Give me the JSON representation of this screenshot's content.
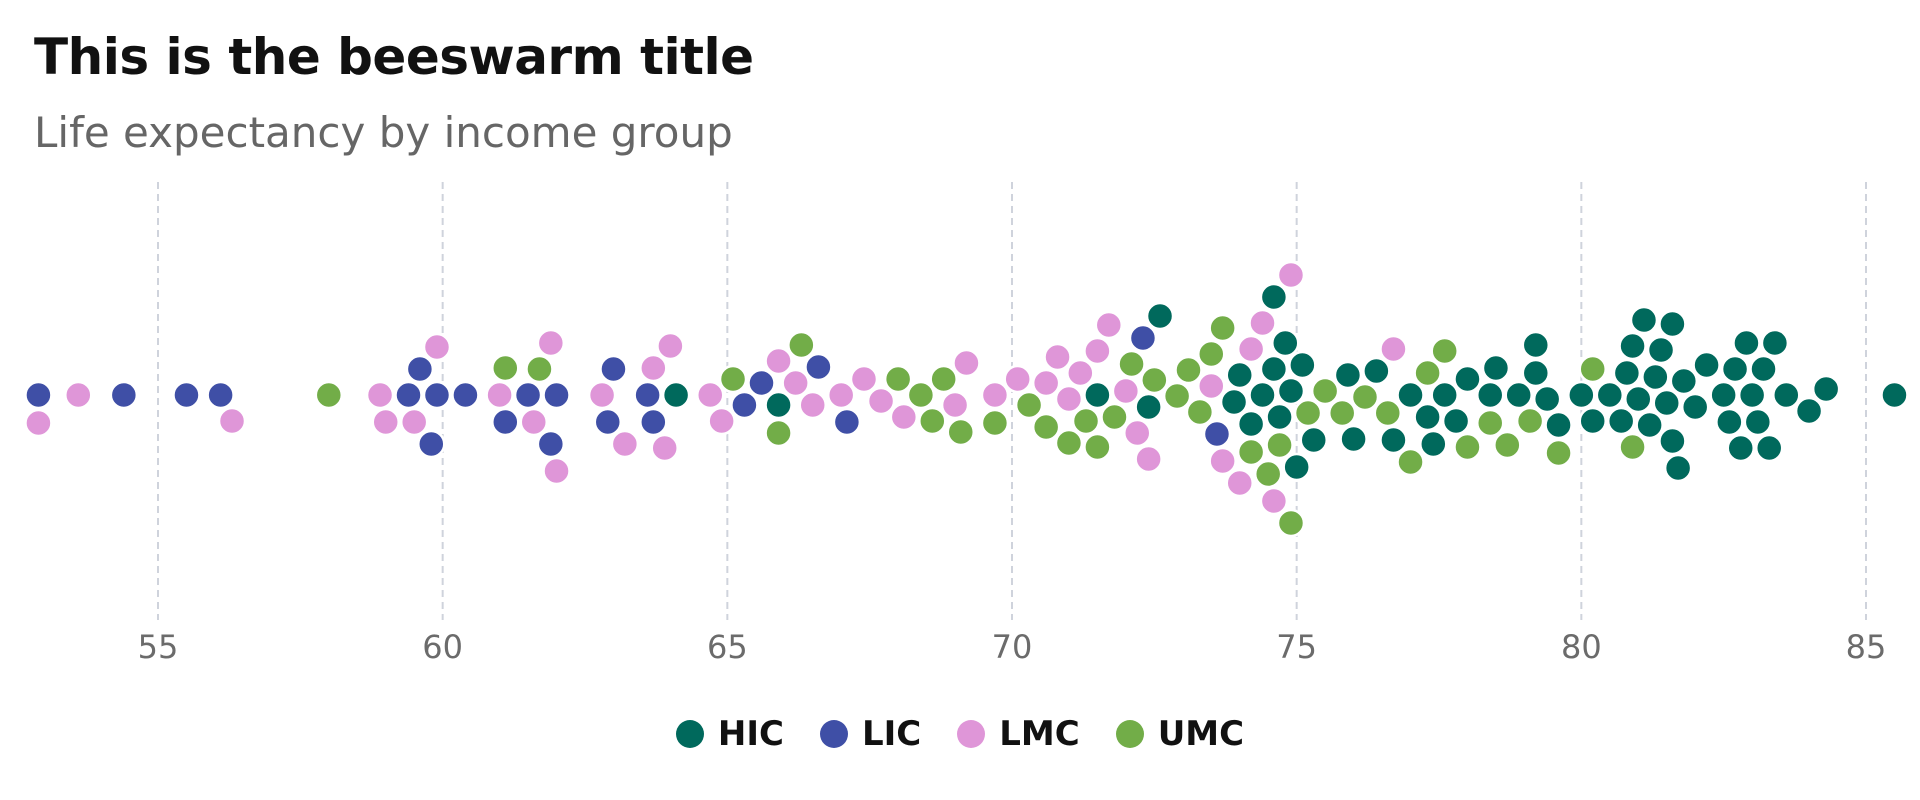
{
  "title": "This is the beeswarm title",
  "subtitle": "Life expectancy by income group",
  "chart_data": {
    "type": "scatter",
    "subtype": "beeswarm",
    "xlabel": "",
    "ylabel": "",
    "xlim": [
      52.8,
      85.5
    ],
    "x_ticks": [
      55,
      60,
      65,
      70,
      75,
      80,
      85
    ],
    "grid": "vertical dashed",
    "legend_position": "bottom-center",
    "series": [
      {
        "name": "HIC",
        "color": "#00695c",
        "values": [
          64.1,
          65.9,
          71.5,
          72.4,
          72.6,
          73.9,
          74.0,
          74.2,
          74.4,
          74.6,
          74.6,
          74.7,
          74.8,
          74.9,
          75.0,
          75.1,
          75.3,
          75.9,
          76.0,
          76.4,
          76.7,
          77.0,
          77.3,
          77.4,
          77.6,
          77.8,
          78.0,
          78.4,
          78.5,
          78.9,
          79.2,
          79.2,
          79.4,
          79.6,
          80.0,
          80.2,
          80.5,
          80.7,
          80.8,
          80.9,
          81.0,
          81.1,
          81.2,
          81.3,
          81.4,
          81.5,
          81.6,
          81.6,
          81.7,
          81.8,
          82.0,
          82.2,
          82.5,
          82.6,
          82.7,
          82.8,
          82.9,
          83.0,
          83.1,
          83.2,
          83.3,
          83.4,
          83.6,
          84.0,
          84.3,
          85.5
        ]
      },
      {
        "name": "LIC",
        "color": "#3f4fa6",
        "values": [
          52.9,
          54.4,
          55.5,
          56.1,
          59.4,
          59.6,
          59.8,
          59.9,
          60.4,
          61.1,
          61.5,
          61.9,
          62.0,
          62.9,
          63.0,
          63.6,
          63.7,
          65.3,
          65.6,
          66.6,
          67.1,
          72.3,
          73.6
        ]
      },
      {
        "name": "LMC",
        "color": "#df96d8",
        "values": [
          52.9,
          53.6,
          56.3,
          58.9,
          59.0,
          59.5,
          59.9,
          61.0,
          61.6,
          61.9,
          62.0,
          62.8,
          63.2,
          63.7,
          63.9,
          64.0,
          64.7,
          64.9,
          65.9,
          66.2,
          66.5,
          67.0,
          67.4,
          67.7,
          68.1,
          69.0,
          69.2,
          69.7,
          70.1,
          70.6,
          70.8,
          71.0,
          71.2,
          71.5,
          71.7,
          72.0,
          72.2,
          72.4,
          73.5,
          73.7,
          74.0,
          74.2,
          74.4,
          74.6,
          74.9,
          76.7
        ]
      },
      {
        "name": "UMC",
        "color": "#72ad48",
        "values": [
          58.0,
          61.1,
          61.7,
          65.1,
          65.9,
          66.3,
          68.0,
          68.4,
          68.6,
          68.8,
          69.1,
          69.7,
          70.3,
          70.6,
          71.0,
          71.3,
          71.5,
          71.8,
          72.1,
          72.5,
          72.9,
          73.1,
          73.3,
          73.5,
          73.7,
          74.2,
          74.5,
          74.7,
          74.9,
          75.2,
          75.5,
          75.8,
          76.2,
          76.6,
          77.0,
          77.3,
          77.6,
          78.0,
          78.4,
          78.7,
          79.1,
          79.6,
          80.2,
          80.9
        ]
      }
    ]
  },
  "legend": {
    "items": [
      {
        "label": "HIC",
        "color": "#00695c"
      },
      {
        "label": "LIC",
        "color": "#3f4fa6"
      },
      {
        "label": "LMC",
        "color": "#df96d8"
      },
      {
        "label": "UMC",
        "color": "#72ad48"
      }
    ]
  }
}
